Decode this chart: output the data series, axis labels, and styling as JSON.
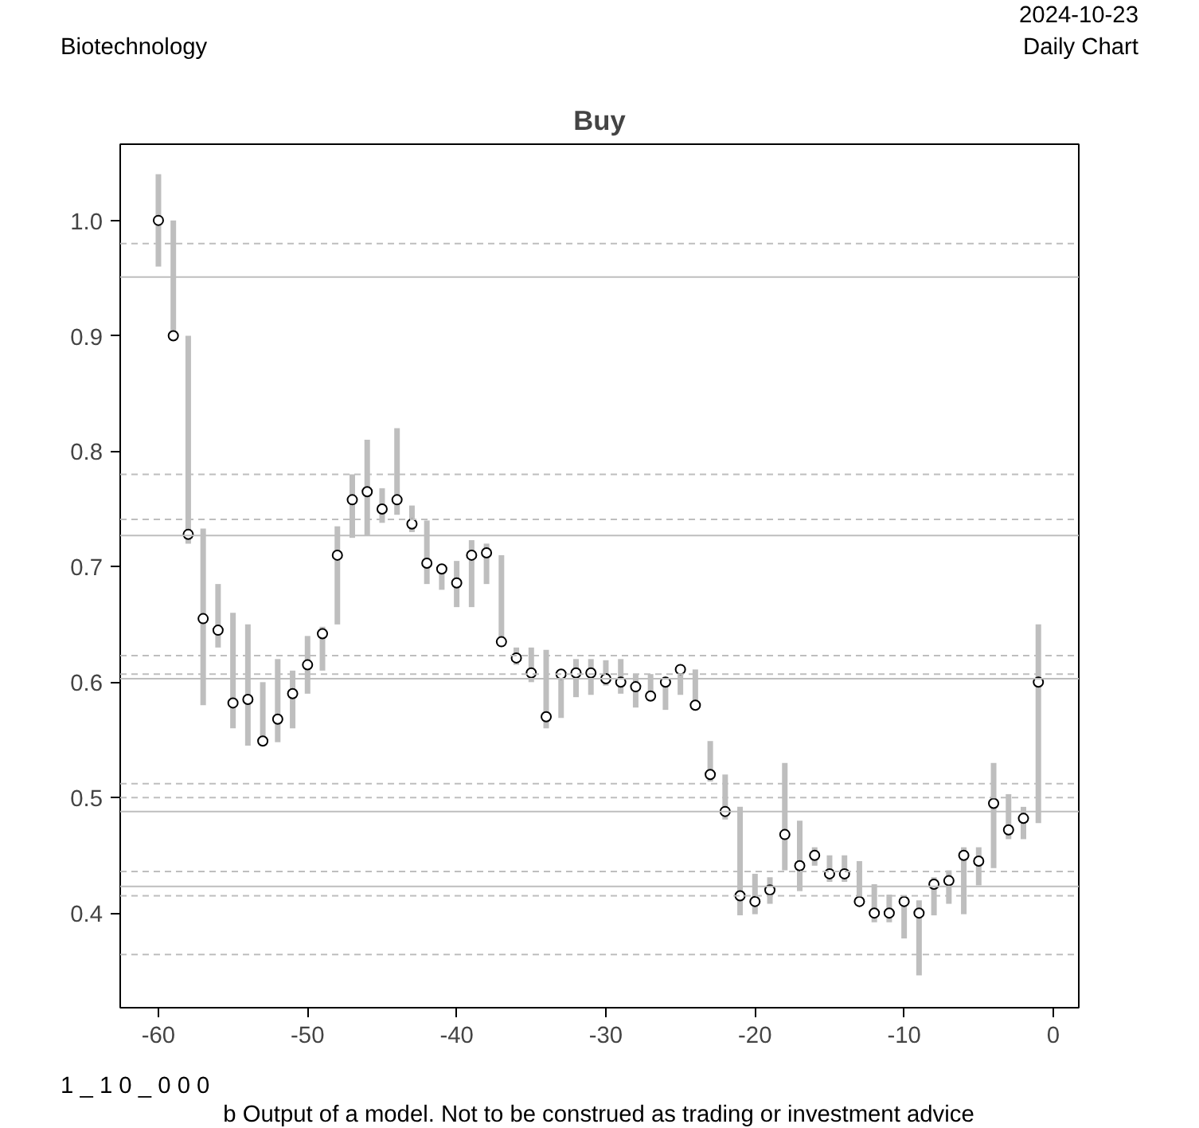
{
  "chart_data": {
    "type": "scatter",
    "title": "Buy",
    "marker": "circle",
    "grid": false,
    "annotations": [
      "Biotechnology",
      "2024-10-23",
      "Daily Chart",
      "1 _ 1 0 _ 0 0 0",
      "b Output of a model. Not to be construed as trading or investment advice"
    ],
    "x": [
      -60,
      -59,
      -58,
      -57,
      -56,
      -55,
      -54,
      -53,
      -52,
      -51,
      -50,
      -49,
      -48,
      -47,
      -46,
      -45,
      -44,
      -43,
      -42,
      -41,
      -40,
      -39,
      -38,
      -37,
      -36,
      -35,
      -34,
      -33,
      -32,
      -31,
      -30,
      -29,
      -28,
      -27,
      -26,
      -25,
      -24,
      -23,
      -22,
      -21,
      -20,
      -19,
      -18,
      -17,
      -16,
      -15,
      -14,
      -13,
      -12,
      -11,
      -10,
      -9,
      -8,
      -7,
      -6,
      -5,
      -4,
      -3,
      -2,
      -1
    ],
    "series": [
      {
        "color": "#000000",
        "values": [
          1.0,
          0.9,
          0.728,
          0.655,
          0.645,
          0.582,
          0.585,
          0.549,
          0.568,
          0.59,
          0.615,
          0.642,
          0.71,
          0.758,
          0.765,
          0.75,
          0.758,
          0.737,
          0.703,
          0.698,
          0.686,
          0.71,
          0.712,
          0.635,
          0.621,
          0.608,
          0.57,
          0.607,
          0.608,
          0.608,
          0.603,
          0.6,
          0.596,
          0.588,
          0.6,
          0.611,
          0.58,
          0.52,
          0.488,
          0.415,
          0.41,
          0.42,
          0.468,
          0.441,
          0.45,
          0.434,
          0.434,
          0.41,
          0.4,
          0.4,
          0.41,
          0.4,
          0.425,
          0.428,
          0.45,
          0.445,
          0.495,
          0.472,
          0.482,
          0.6
        ],
        "errors": [
          [
            0.96,
            1.04
          ],
          [
            0.9,
            1.0
          ],
          [
            0.72,
            0.9
          ],
          [
            0.58,
            0.733
          ],
          [
            0.63,
            0.685
          ],
          [
            0.56,
            0.66
          ],
          [
            0.545,
            0.65
          ],
          [
            0.545,
            0.6
          ],
          [
            0.548,
            0.62
          ],
          [
            0.56,
            0.61
          ],
          [
            0.59,
            0.64
          ],
          [
            0.61,
            0.648
          ],
          [
            0.65,
            0.735
          ],
          [
            0.725,
            0.78
          ],
          [
            0.727,
            0.81
          ],
          [
            0.738,
            0.768
          ],
          [
            0.745,
            0.82
          ],
          [
            0.73,
            0.753
          ],
          [
            0.685,
            0.74
          ],
          [
            0.68,
            0.7
          ],
          [
            0.665,
            0.705
          ],
          [
            0.665,
            0.723
          ],
          [
            0.685,
            0.72
          ],
          [
            0.635,
            0.71
          ],
          [
            0.615,
            0.63
          ],
          [
            0.6,
            0.63
          ],
          [
            0.56,
            0.628
          ],
          [
            0.569,
            0.611
          ],
          [
            0.587,
            0.62
          ],
          [
            0.589,
            0.62
          ],
          [
            0.597,
            0.619
          ],
          [
            0.59,
            0.62
          ],
          [
            0.578,
            0.607
          ],
          [
            0.584,
            0.607
          ],
          [
            0.576,
            0.604
          ],
          [
            0.589,
            0.613
          ],
          [
            0.58,
            0.611
          ],
          [
            0.514,
            0.549
          ],
          [
            0.481,
            0.52
          ],
          [
            0.398,
            0.492
          ],
          [
            0.399,
            0.434
          ],
          [
            0.408,
            0.431
          ],
          [
            0.437,
            0.53
          ],
          [
            0.419,
            0.48
          ],
          [
            0.441,
            0.457
          ],
          [
            0.427,
            0.45
          ],
          [
            0.427,
            0.45
          ],
          [
            0.409,
            0.445
          ],
          [
            0.392,
            0.425
          ],
          [
            0.392,
            0.416
          ],
          [
            0.378,
            0.415
          ],
          [
            0.346,
            0.411
          ],
          [
            0.398,
            0.431
          ],
          [
            0.408,
            0.437
          ],
          [
            0.399,
            0.457
          ],
          [
            0.424,
            0.457
          ],
          [
            0.439,
            0.53
          ],
          [
            0.464,
            0.503
          ],
          [
            0.464,
            0.492
          ],
          [
            0.478,
            0.65
          ]
        ]
      }
    ],
    "xlim": [
      -62.56,
      1.71
    ],
    "ylim": [
      0.318,
      1.066
    ],
    "xticks": [
      -60,
      -50,
      -40,
      -30,
      -20,
      -10,
      0
    ],
    "yticks": [
      {
        "value": 0.4,
        "label": "0.4"
      },
      {
        "value": 0.5,
        "label": "0.5"
      },
      {
        "value": 0.6,
        "label": "0.6"
      },
      {
        "value": 0.7,
        "label": "0.7"
      },
      {
        "value": 0.8,
        "label": "0.8"
      },
      {
        "value": 0.9,
        "label": "0.9"
      },
      {
        "value": 1.0,
        "label": "1.0"
      }
    ],
    "ref_lines": [
      {
        "axis": "y",
        "value": 0.951,
        "color": "#bebebe",
        "line_style": "solid"
      },
      {
        "axis": "y",
        "value": 0.727,
        "color": "#bebebe",
        "line_style": "solid"
      },
      {
        "axis": "y",
        "value": 0.603,
        "color": "#bebebe",
        "line_style": "solid"
      },
      {
        "axis": "y",
        "value": 0.488,
        "color": "#bebebe",
        "line_style": "solid"
      },
      {
        "axis": "y",
        "value": 0.423,
        "color": "#bebebe",
        "line_style": "solid"
      },
      {
        "axis": "y",
        "value": 0.98,
        "color": "#bebebe",
        "line_style": "dashed"
      },
      {
        "axis": "y",
        "value": 0.78,
        "color": "#bebebe",
        "line_style": "dashed"
      },
      {
        "axis": "y",
        "value": 0.741,
        "color": "#bebebe",
        "line_style": "dashed"
      },
      {
        "axis": "y",
        "value": 0.623,
        "color": "#bebebe",
        "line_style": "dashed"
      },
      {
        "axis": "y",
        "value": 0.607,
        "color": "#bebebe",
        "line_style": "dashed"
      },
      {
        "axis": "y",
        "value": 0.512,
        "color": "#bebebe",
        "line_style": "dashed"
      },
      {
        "axis": "y",
        "value": 0.5,
        "color": "#bebebe",
        "line_style": "dashed"
      },
      {
        "axis": "y",
        "value": 0.436,
        "color": "#bebebe",
        "line_style": "dashed"
      },
      {
        "axis": "y",
        "value": 0.415,
        "color": "#bebebe",
        "line_style": "dashed"
      },
      {
        "axis": "y",
        "value": 0.364,
        "color": "#bebebe",
        "line_style": "dashed"
      }
    ]
  }
}
